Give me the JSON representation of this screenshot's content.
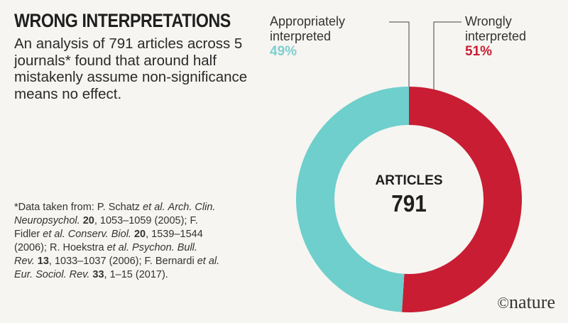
{
  "header": {
    "title": "WRONG INTERPRETATIONS",
    "intro": "An analysis of 791 articles across 5 journals* found that around half mistakenly assume non-significance means no effect."
  },
  "footnote": {
    "parts": [
      "*Data taken from: P. Schatz ",
      "et al.",
      " ",
      "Arch. Clin. Neuropsychol.",
      " ",
      "20",
      ", 1053–1059 (2005); F. Fidler ",
      "et al.",
      " ",
      "Conserv. Biol.",
      " ",
      "20",
      ", 1539–1544 (2006); R. Hoekstra ",
      "et al.",
      " ",
      "Psychon. Bull. Rev.",
      " ",
      "13",
      ", 1033–1037 (2006); F. Bernardi ",
      "et al.",
      " ",
      "Eur. Sociol. Rev.",
      " ",
      "33",
      ", 1–15 (2017)."
    ]
  },
  "logo": {
    "symbol": "©",
    "text": "nature"
  },
  "colors": {
    "appropriate": "#6ecfcc",
    "wrong": "#c81d33",
    "background": "#f6f5f1"
  },
  "chart_data": {
    "type": "pie",
    "title": "",
    "center_label": "ARTICLES",
    "center_value": "791",
    "series": [
      {
        "name": "Wrongly interpreted",
        "label_lines": [
          "Wrongly",
          "interpreted"
        ],
        "value": 51,
        "display": "51%"
      },
      {
        "name": "Appropriately interpreted",
        "label_lines": [
          "Appropriately",
          "interpreted"
        ],
        "value": 49,
        "display": "49%"
      }
    ]
  }
}
